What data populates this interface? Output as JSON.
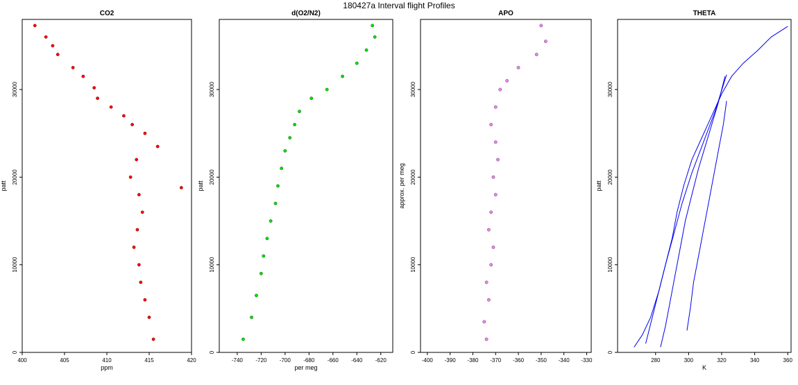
{
  "figure": {
    "title": "180427a   Interval flight Profiles"
  },
  "chart_data": [
    {
      "type": "scatter",
      "title": "CO2",
      "xlabel": "ppm",
      "ylabel": "patt",
      "xlim": [
        400,
        420
      ],
      "ylim": [
        0,
        38000
      ],
      "xticks": [
        400,
        405,
        410,
        415,
        420
      ],
      "yticks": [
        0,
        10000,
        20000,
        30000
      ],
      "color": "#ff0000",
      "series": [
        {
          "x": [
            401.5,
            402.8,
            403.6,
            404.2,
            406.0,
            407.2,
            408.5,
            408.9,
            410.5,
            412.0,
            413.0,
            414.5,
            416.0,
            418.8,
            413.5,
            412.8,
            413.8,
            414.2,
            413.6,
            413.2,
            413.8,
            414.0,
            414.5,
            415.0,
            415.5
          ],
          "y": [
            37300,
            36000,
            35000,
            34000,
            32500,
            31500,
            30200,
            29000,
            28000,
            27000,
            26000,
            25000,
            23500,
            18800,
            22000,
            20000,
            18000,
            16000,
            14000,
            12000,
            10000,
            8000,
            6000,
            4000,
            1500
          ]
        }
      ]
    },
    {
      "type": "scatter",
      "title": "d(O2/N2)",
      "xlabel": "per meg",
      "ylabel": "patt",
      "xlim": [
        -755,
        -610
      ],
      "ylim": [
        0,
        38000
      ],
      "xticks": [
        -740,
        -720,
        -700,
        -680,
        -660,
        -640,
        -620
      ],
      "yticks": [
        0,
        10000,
        20000,
        30000
      ],
      "color": "#00e000",
      "series": [
        {
          "x": [
            -627,
            -625,
            -632,
            -640,
            -652,
            -665,
            -678,
            -688,
            -692,
            -696,
            -700,
            -703,
            -706,
            -708,
            -712,
            -715,
            -718,
            -720,
            -724,
            -728,
            -735
          ],
          "y": [
            37300,
            36000,
            34500,
            33000,
            31500,
            30000,
            29000,
            27500,
            26000,
            24500,
            23000,
            21000,
            19000,
            17000,
            15000,
            13000,
            11000,
            9000,
            6500,
            4000,
            1500
          ]
        }
      ]
    },
    {
      "type": "scatter",
      "title": "APO",
      "xlabel": "",
      "ylabel": "approx. per meg",
      "xlim": [
        -403,
        -328
      ],
      "ylim": [
        0,
        38000
      ],
      "xticks": [
        -400,
        -390,
        -380,
        -370,
        -360,
        -350,
        -340,
        -330
      ],
      "yticks": [
        0,
        10000,
        20000,
        30000
      ],
      "color": "#ee82ee",
      "series": [
        {
          "x": [
            -350,
            -348,
            -352,
            -360,
            -365,
            -368,
            -370,
            -372,
            -370,
            -369,
            -371,
            -370,
            -372,
            -373,
            -371,
            -372,
            -374,
            -373,
            -375,
            -374
          ],
          "y": [
            37300,
            35500,
            34000,
            32500,
            31000,
            30000,
            28000,
            26000,
            24000,
            22000,
            20000,
            18000,
            16000,
            14000,
            12000,
            10000,
            8000,
            6000,
            3500,
            1500
          ]
        }
      ]
    },
    {
      "type": "line",
      "title": "THETA",
      "xlabel": "K",
      "ylabel": "patt",
      "xlim": [
        257,
        362
      ],
      "ylim": [
        0,
        38000
      ],
      "xticks": [
        280,
        300,
        320,
        340,
        360
      ],
      "yticks": [
        0,
        10000,
        20000,
        30000
      ],
      "color": "#0000ee",
      "series": [
        {
          "x": [
            267,
            272,
            277,
            282,
            286,
            290,
            293,
            297,
            302,
            308,
            314,
            320,
            326,
            333,
            342,
            350,
            360
          ],
          "y": [
            600,
            2000,
            4000,
            7000,
            10000,
            13000,
            16000,
            19000,
            22000,
            24500,
            27000,
            29500,
            31500,
            33000,
            34500,
            36000,
            37200
          ]
        },
        {
          "x": [
            283,
            286,
            289,
            292,
            295,
            298,
            302,
            306,
            310,
            314,
            318,
            322
          ],
          "y": [
            600,
            3000,
            6000,
            9000,
            12000,
            15000,
            18000,
            21000,
            23500,
            26000,
            28500,
            31500
          ]
        },
        {
          "x": [
            299,
            301,
            303,
            306,
            309,
            312,
            315,
            318,
            321,
            323
          ],
          "y": [
            2500,
            5000,
            8000,
            11000,
            14000,
            17000,
            20000,
            23000,
            26000,
            28700
          ]
        },
        {
          "x": [
            274,
            278,
            282,
            286,
            291,
            296,
            302,
            309,
            316,
            323
          ],
          "y": [
            1000,
            4000,
            7000,
            10000,
            13500,
            17000,
            20500,
            24000,
            27500,
            31700
          ]
        }
      ]
    }
  ]
}
